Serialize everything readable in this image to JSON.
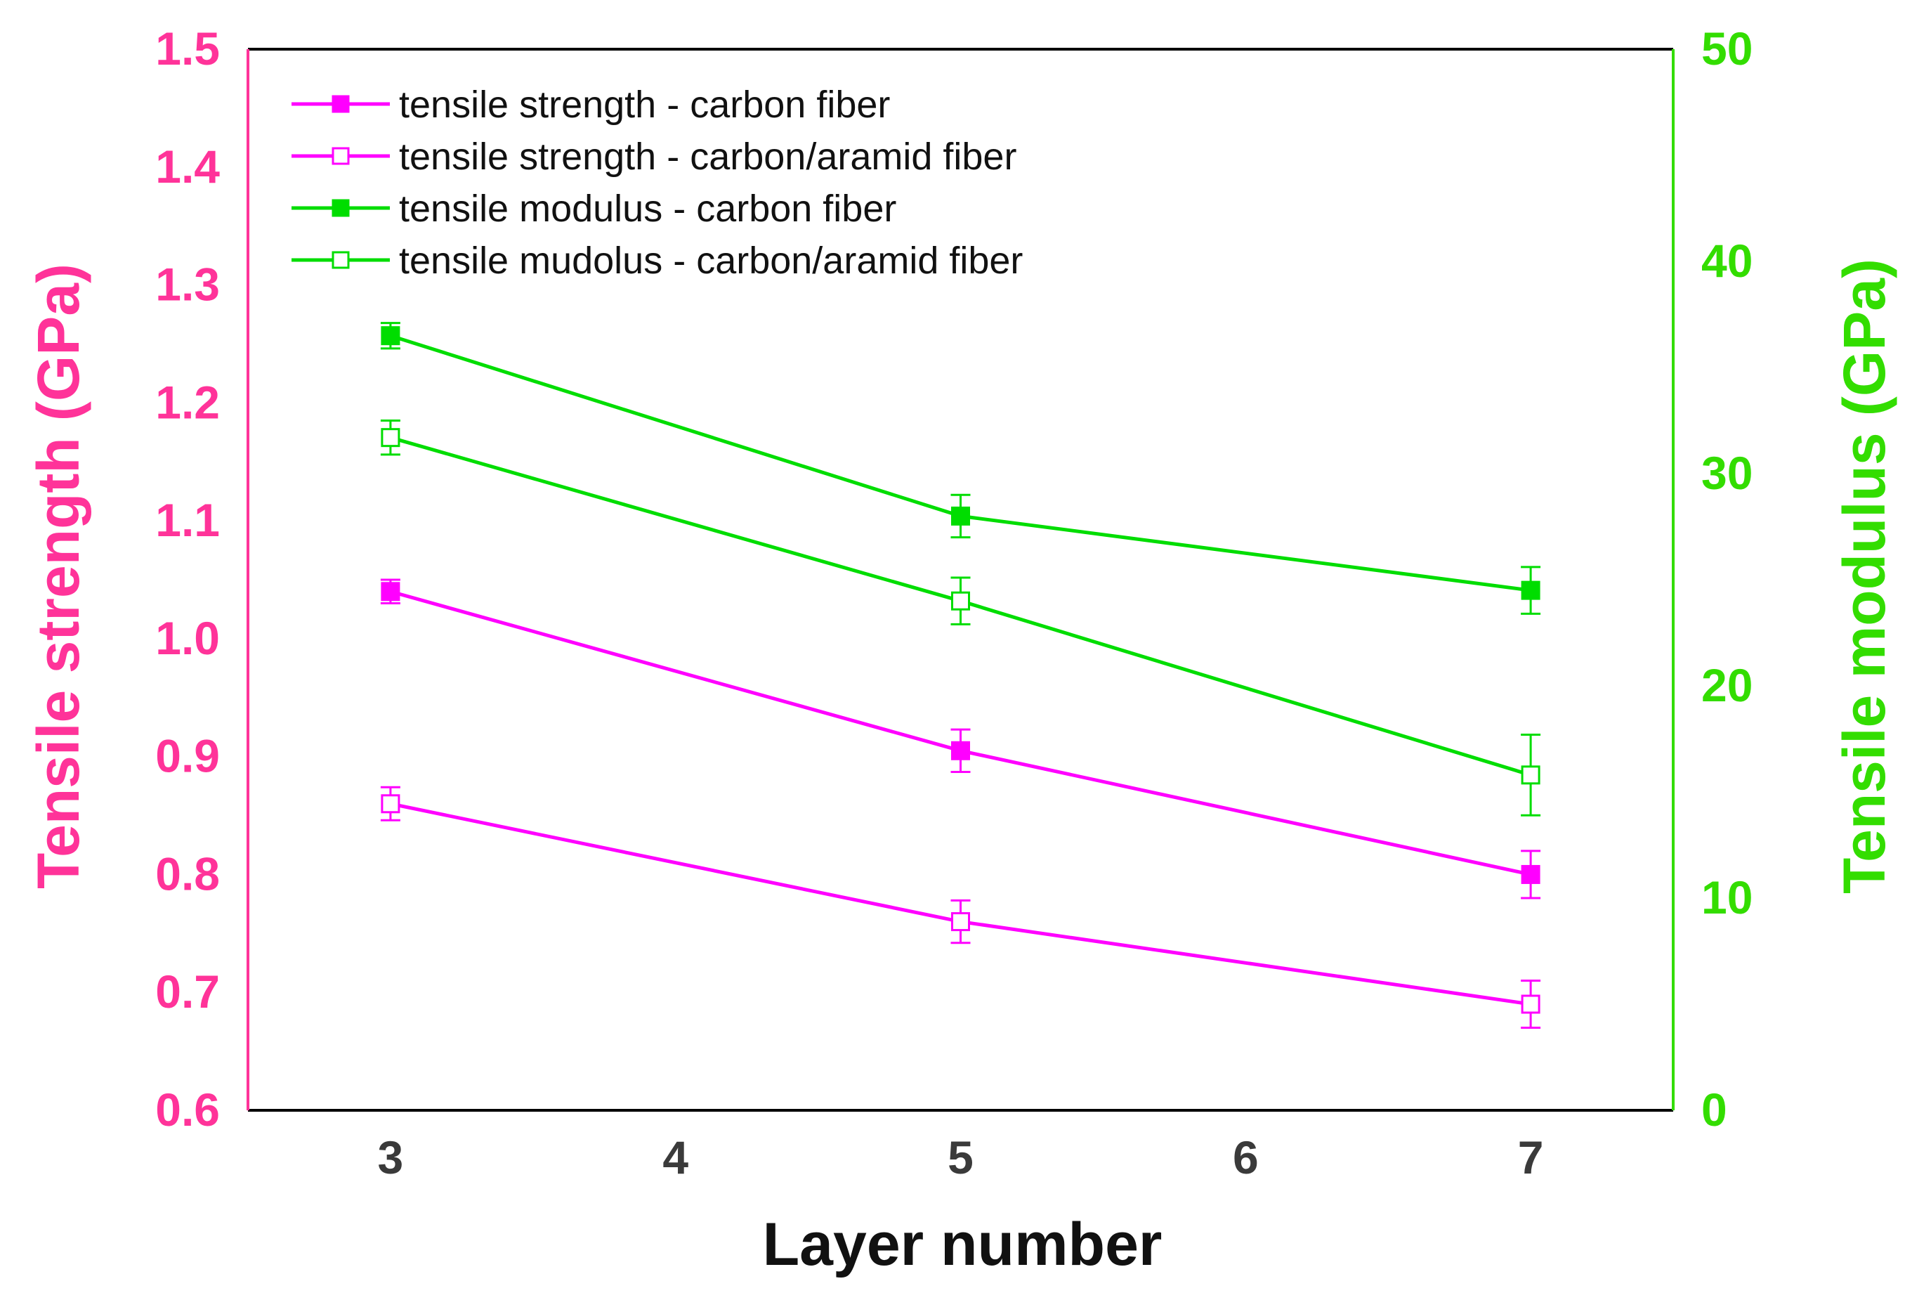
{
  "chart_data": {
    "type": "line",
    "x": [
      3,
      5,
      7
    ],
    "xlabel": "Layer  number",
    "xticks": [
      "3",
      "4",
      "5",
      "6",
      "7"
    ],
    "xlim": [
      2.5,
      7.5
    ],
    "ylabel_left": "Tensile strength  (GPa)",
    "ylim_left": [
      0.6,
      1.5
    ],
    "yticks_left": [
      "0.6",
      "0.7",
      "0.8",
      "0.9",
      "1.0",
      "1.1",
      "1.2",
      "1.3",
      "1.4",
      "1.5"
    ],
    "ylabel_right": "Tensile modulus  (GPa)",
    "ylim_right": [
      0,
      50
    ],
    "yticks_right": [
      "0",
      "10",
      "20",
      "30",
      "40",
      "50"
    ],
    "colors": {
      "strength": "#ff00ff",
      "modulus": "#00dd00",
      "left_axis": "#ff3399",
      "right_axis": "#33dd00"
    },
    "series": [
      {
        "name": "tensile strength - carbon fiber",
        "axis": "left",
        "color": "#ff00ff",
        "marker": "filled-square",
        "values": [
          1.04,
          0.905,
          0.8
        ],
        "errors": [
          0.01,
          0.018,
          0.02
        ]
      },
      {
        "name": "tensile strength - carbon/aramid fiber",
        "axis": "left",
        "color": "#ff00ff",
        "marker": "open-square",
        "values": [
          0.86,
          0.76,
          0.69
        ],
        "errors": [
          0.014,
          0.018,
          0.02
        ]
      },
      {
        "name": "tensile modulus - carbon fiber",
        "axis": "right",
        "color": "#00dd00",
        "marker": "filled-square",
        "values": [
          36.5,
          28.0,
          24.5
        ],
        "errors": [
          0.6,
          1.0,
          1.1
        ]
      },
      {
        "name": "tensile mudolus - carbon/aramid fiber",
        "axis": "right",
        "color": "#00dd00",
        "marker": "open-square",
        "values": [
          31.7,
          24.0,
          15.8
        ],
        "errors": [
          0.8,
          1.1,
          1.9
        ]
      }
    ]
  }
}
